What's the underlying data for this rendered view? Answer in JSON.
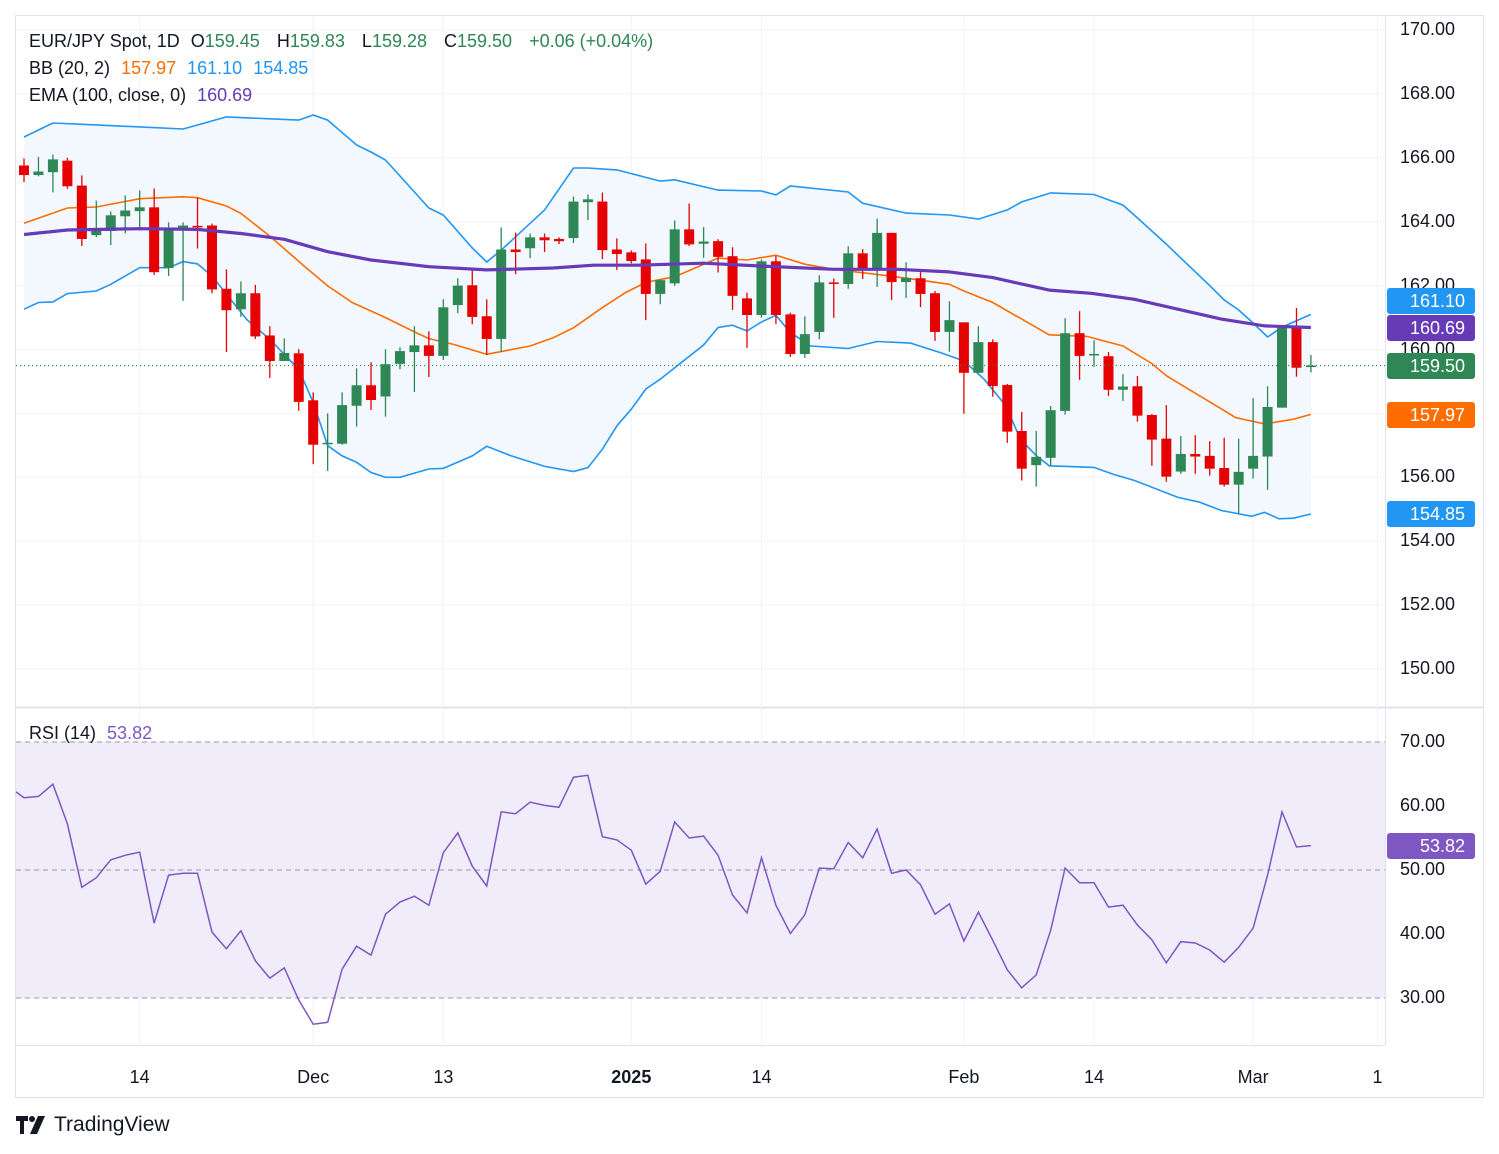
{
  "legend": {
    "symbol": "EUR/JPY Spot, 1D",
    "open_label": "O",
    "open": "159.45",
    "high_label": "H",
    "high": "159.83",
    "low_label": "L",
    "low": "159.28",
    "close_label": "C",
    "close": "159.50",
    "change": "+0.06 (+0.04%)",
    "bb_label": "BB (20, 2)",
    "bb_basis": "157.97",
    "bb_upper": "161.10",
    "bb_lower": "154.85",
    "ema_label": "EMA (100, close, 0)",
    "ema_value": "160.69",
    "rsi_label": "RSI (14)",
    "rsi_value": "53.82"
  },
  "price_axis": [
    "170.00",
    "168.00",
    "166.00",
    "164.00",
    "162.00",
    "160.00",
    "156.00",
    "154.00",
    "152.00",
    "150.00"
  ],
  "price_axis_values": [
    170,
    168,
    166,
    164,
    162,
    160,
    156,
    154,
    152,
    150
  ],
  "badges": {
    "bb_upper": "161.10",
    "ema": "160.69",
    "last": "159.50",
    "bb_basis": "157.97",
    "bb_lower": "154.85",
    "rsi": "53.82"
  },
  "rsi_axis": [
    "70.00",
    "60.00",
    "50.00",
    "40.00",
    "30.00"
  ],
  "time_axis": [
    {
      "label": "14",
      "bold": false
    },
    {
      "label": "Dec",
      "bold": false
    },
    {
      "label": "13",
      "bold": false
    },
    {
      "label": "2025",
      "bold": true
    },
    {
      "label": "14",
      "bold": false
    },
    {
      "label": "Feb",
      "bold": false
    },
    {
      "label": "14",
      "bold": false
    },
    {
      "label": "Mar",
      "bold": false
    },
    {
      "label": "1",
      "bold": false
    }
  ],
  "brand": "TradingView",
  "colors": {
    "up": "#2e8754",
    "down": "#e60000",
    "band": "#2196f3",
    "basis": "#ff6d00",
    "ema": "#673ab7",
    "rsi": "#7e57c2",
    "band_fill": "#f2f8fe",
    "rsi_fill": "#f1ecf9"
  },
  "chart_data": {
    "type": "candlestick",
    "title": "EUR/JPY Spot, 1D",
    "ylim": [
      149,
      170.5
    ],
    "candles_ohlc": [
      [
        165.76,
        165.98,
        165.24,
        165.46
      ],
      [
        165.46,
        166.03,
        165.42,
        165.57
      ],
      [
        165.55,
        166.1,
        164.92,
        165.95
      ],
      [
        165.91,
        166.0,
        165.03,
        165.11
      ],
      [
        165.13,
        165.45,
        163.24,
        163.46
      ],
      [
        163.58,
        164.66,
        163.52,
        163.74
      ],
      [
        163.71,
        164.32,
        163.27,
        164.2
      ],
      [
        164.17,
        164.82,
        163.63,
        164.35
      ],
      [
        164.33,
        164.98,
        163.81,
        164.45
      ],
      [
        164.45,
        165.04,
        162.33,
        162.42
      ],
      [
        162.55,
        163.98,
        162.3,
        163.78
      ],
      [
        163.73,
        163.98,
        161.52,
        163.88
      ],
      [
        163.87,
        164.75,
        163.16,
        163.85
      ],
      [
        163.88,
        163.94,
        161.76,
        161.88
      ],
      [
        161.9,
        162.51,
        159.92,
        161.23
      ],
      [
        161.26,
        162.13,
        161.02,
        161.76
      ],
      [
        161.76,
        162.02,
        160.33,
        160.41
      ],
      [
        160.44,
        160.73,
        159.11,
        159.64
      ],
      [
        159.64,
        160.35,
        159.64,
        159.89
      ],
      [
        159.88,
        160.01,
        158.08,
        158.36
      ],
      [
        158.41,
        158.66,
        156.41,
        157.02
      ],
      [
        157.05,
        158.0,
        156.2,
        157.08
      ],
      [
        157.05,
        158.66,
        157.02,
        158.26
      ],
      [
        158.24,
        159.41,
        157.59,
        158.88
      ],
      [
        158.88,
        159.6,
        158.11,
        158.42
      ],
      [
        158.53,
        160.01,
        157.9,
        159.54
      ],
      [
        159.55,
        160.07,
        159.38,
        159.95
      ],
      [
        159.92,
        160.73,
        158.67,
        160.13
      ],
      [
        160.13,
        160.57,
        159.14,
        159.8
      ],
      [
        159.8,
        161.57,
        159.67,
        161.32
      ],
      [
        161.39,
        162.23,
        161.14,
        162.0
      ],
      [
        162.01,
        162.48,
        160.79,
        161.02
      ],
      [
        161.04,
        161.57,
        159.83,
        160.33
      ],
      [
        160.33,
        163.82,
        159.92,
        163.13
      ],
      [
        163.13,
        163.66,
        162.36,
        163.05
      ],
      [
        163.17,
        163.63,
        162.86,
        163.51
      ],
      [
        163.51,
        163.63,
        163.05,
        163.42
      ],
      [
        163.46,
        163.51,
        163.3,
        163.39
      ],
      [
        163.49,
        164.79,
        163.33,
        164.63
      ],
      [
        164.61,
        164.85,
        164.05,
        164.7
      ],
      [
        164.63,
        164.91,
        162.83,
        163.11
      ],
      [
        163.13,
        163.48,
        162.49,
        162.99
      ],
      [
        163.04,
        163.1,
        162.7,
        162.77
      ],
      [
        162.82,
        163.32,
        160.92,
        161.74
      ],
      [
        161.74,
        162.2,
        161.42,
        162.17
      ],
      [
        162.07,
        164.04,
        161.99,
        163.76
      ],
      [
        163.76,
        164.57,
        163.24,
        163.29
      ],
      [
        163.31,
        163.83,
        162.87,
        163.38
      ],
      [
        163.39,
        163.45,
        162.41,
        162.9
      ],
      [
        162.92,
        163.2,
        161.24,
        161.68
      ],
      [
        161.6,
        161.78,
        160.05,
        161.08
      ],
      [
        161.08,
        162.82,
        161.0,
        162.76
      ],
      [
        162.76,
        162.93,
        160.8,
        161.08
      ],
      [
        161.1,
        161.15,
        159.77,
        159.86
      ],
      [
        159.86,
        161.04,
        159.74,
        160.48
      ],
      [
        160.55,
        162.32,
        160.32,
        162.1
      ],
      [
        162.1,
        162.22,
        160.99,
        162.07
      ],
      [
        162.05,
        163.23,
        161.9,
        163.01
      ],
      [
        163.01,
        163.14,
        162.21,
        162.49
      ],
      [
        162.49,
        164.1,
        161.96,
        163.65
      ],
      [
        163.65,
        163.65,
        161.55,
        162.11
      ],
      [
        162.11,
        162.73,
        161.61,
        162.24
      ],
      [
        162.23,
        162.51,
        161.33,
        161.74
      ],
      [
        161.76,
        161.83,
        160.27,
        160.55
      ],
      [
        160.55,
        161.51,
        159.93,
        160.92
      ],
      [
        160.85,
        160.85,
        157.99,
        159.27
      ],
      [
        159.27,
        160.73,
        159.27,
        160.23
      ],
      [
        160.23,
        160.32,
        158.52,
        158.86
      ],
      [
        158.89,
        158.92,
        157.08,
        157.43
      ],
      [
        157.45,
        158.05,
        155.9,
        156.27
      ],
      [
        156.38,
        157.45,
        155.71,
        156.64
      ],
      [
        156.61,
        158.23,
        156.36,
        158.1
      ],
      [
        158.08,
        160.98,
        157.96,
        160.51
      ],
      [
        160.51,
        161.2,
        159.05,
        159.8
      ],
      [
        159.82,
        160.29,
        159.46,
        159.86
      ],
      [
        159.79,
        159.92,
        158.55,
        158.74
      ],
      [
        158.74,
        159.23,
        158.39,
        158.84
      ],
      [
        158.85,
        159.17,
        157.74,
        157.93
      ],
      [
        157.95,
        157.98,
        156.36,
        157.18
      ],
      [
        157.21,
        158.26,
        155.86,
        156.02
      ],
      [
        156.18,
        157.29,
        156.11,
        156.73
      ],
      [
        156.73,
        157.32,
        156.11,
        156.65
      ],
      [
        156.67,
        157.13,
        156.05,
        156.27
      ],
      [
        156.29,
        157.24,
        155.71,
        155.77
      ],
      [
        155.77,
        157.21,
        154.86,
        156.17
      ],
      [
        156.27,
        158.48,
        155.96,
        156.67
      ],
      [
        156.65,
        158.85,
        155.61,
        158.2
      ],
      [
        158.18,
        160.74,
        158.18,
        160.71
      ],
      [
        160.71,
        161.3,
        159.15,
        159.43
      ],
      [
        159.45,
        159.83,
        159.28,
        159.5
      ]
    ],
    "bb_upper_points": [
      [
        0,
        166.65
      ],
      [
        2,
        167.09
      ],
      [
        5,
        167.03
      ],
      [
        11,
        166.9
      ],
      [
        14,
        167.28
      ],
      [
        19,
        167.18
      ],
      [
        20,
        167.34
      ],
      [
        21,
        167.18
      ],
      [
        23,
        166.4
      ],
      [
        24,
        166.18
      ],
      [
        25,
        165.93
      ],
      [
        28,
        164.43
      ],
      [
        29,
        164.21
      ],
      [
        31,
        163.18
      ],
      [
        32,
        162.74
      ],
      [
        33,
        163.11
      ],
      [
        36,
        164.37
      ],
      [
        38,
        165.68
      ],
      [
        39,
        165.68
      ],
      [
        41,
        165.62
      ],
      [
        44,
        165.27
      ],
      [
        45,
        165.31
      ],
      [
        48,
        164.99
      ],
      [
        51,
        164.96
      ],
      [
        52,
        164.84
      ],
      [
        53,
        165.12
      ],
      [
        57,
        164.93
      ],
      [
        58,
        164.58
      ],
      [
        61,
        164.27
      ],
      [
        64,
        164.21
      ],
      [
        66,
        164.08
      ],
      [
        68,
        164.37
      ],
      [
        69,
        164.62
      ],
      [
        71,
        164.9
      ],
      [
        74,
        164.85
      ],
      [
        76,
        164.52
      ],
      [
        77,
        164.12
      ],
      [
        79,
        163.3
      ],
      [
        80,
        162.86
      ],
      [
        82,
        162.0
      ],
      [
        83,
        161.55
      ],
      [
        84,
        161.24
      ],
      [
        85,
        160.83
      ],
      [
        86,
        160.39
      ],
      [
        87,
        160.7
      ],
      [
        89,
        161.1
      ]
    ],
    "bb_lower_points": [
      [
        0,
        161.26
      ],
      [
        1,
        161.47
      ],
      [
        2,
        161.49
      ],
      [
        3,
        161.75
      ],
      [
        5,
        161.83
      ],
      [
        6,
        162.04
      ],
      [
        8,
        162.56
      ],
      [
        10,
        162.56
      ],
      [
        11,
        162.75
      ],
      [
        12,
        162.68
      ],
      [
        13,
        162.3
      ],
      [
        15.4,
        160.94
      ],
      [
        17,
        160.32
      ],
      [
        19,
        159.38
      ],
      [
        20,
        158.34
      ],
      [
        21,
        156.99
      ],
      [
        22,
        156.67
      ],
      [
        23,
        156.47
      ],
      [
        24,
        156.15
      ],
      [
        25,
        156.0
      ],
      [
        26,
        156.0
      ],
      [
        28,
        156.26
      ],
      [
        29,
        156.28
      ],
      [
        31,
        156.67
      ],
      [
        32,
        156.97
      ],
      [
        33.7,
        156.67
      ],
      [
        36,
        156.34
      ],
      [
        38,
        156.18
      ],
      [
        39,
        156.3
      ],
      [
        40,
        156.88
      ],
      [
        41,
        157.61
      ],
      [
        42,
        158.13
      ],
      [
        43,
        158.76
      ],
      [
        44,
        159.07
      ],
      [
        47,
        160.14
      ],
      [
        48,
        160.69
      ],
      [
        49,
        160.76
      ],
      [
        50,
        160.58
      ],
      [
        51,
        160.86
      ],
      [
        52,
        161.07
      ],
      [
        53,
        160.53
      ],
      [
        54.4,
        160.11
      ],
      [
        57,
        160.03
      ],
      [
        59,
        160.25
      ],
      [
        61.3,
        160.2
      ],
      [
        63.4,
        159.9
      ],
      [
        65,
        159.64
      ],
      [
        66.4,
        159.07
      ],
      [
        67.9,
        158.24
      ],
      [
        68.9,
        157.2
      ],
      [
        70,
        156.68
      ],
      [
        70.9,
        156.36
      ],
      [
        74,
        156.31
      ],
      [
        75.3,
        156.1
      ],
      [
        76.8,
        155.9
      ],
      [
        79.8,
        155.37
      ],
      [
        81.3,
        155.22
      ],
      [
        82.8,
        154.96
      ],
      [
        84.9,
        154.78
      ],
      [
        85.8,
        154.9
      ],
      [
        86.8,
        154.7
      ],
      [
        87.8,
        154.72
      ],
      [
        89,
        154.85
      ]
    ],
    "bb_basis_points": [
      [
        0,
        163.95
      ],
      [
        3,
        164.43
      ],
      [
        5,
        164.46
      ],
      [
        8,
        164.72
      ],
      [
        11,
        164.78
      ],
      [
        12,
        164.75
      ],
      [
        14,
        164.49
      ],
      [
        15,
        164.26
      ],
      [
        17,
        163.55
      ],
      [
        19.4,
        162.6
      ],
      [
        21,
        161.99
      ],
      [
        22.7,
        161.47
      ],
      [
        25,
        161.0
      ],
      [
        27,
        160.55
      ],
      [
        28,
        160.34
      ],
      [
        29.7,
        160.16
      ],
      [
        32,
        159.85
      ],
      [
        35,
        160.11
      ],
      [
        36.6,
        160.37
      ],
      [
        38,
        160.68
      ],
      [
        40,
        161.31
      ],
      [
        41.6,
        161.78
      ],
      [
        43,
        162.1
      ],
      [
        45,
        162.28
      ],
      [
        48,
        162.86
      ],
      [
        50,
        162.8
      ],
      [
        52,
        162.95
      ],
      [
        54,
        162.67
      ],
      [
        56,
        162.51
      ],
      [
        59,
        162.35
      ],
      [
        61.5,
        162.2
      ],
      [
        64,
        162.04
      ],
      [
        65,
        161.83
      ],
      [
        67,
        161.47
      ],
      [
        69,
        160.95
      ],
      [
        70.9,
        160.46
      ],
      [
        73.5,
        160.41
      ],
      [
        76,
        160.11
      ],
      [
        78,
        159.56
      ],
      [
        79,
        159.18
      ],
      [
        81.3,
        158.55
      ],
      [
        83.8,
        157.87
      ],
      [
        85.8,
        157.67
      ],
      [
        87.8,
        157.82
      ],
      [
        89,
        157.97
      ]
    ],
    "ema_points": [
      [
        0,
        163.6
      ],
      [
        3,
        163.74
      ],
      [
        8,
        163.78
      ],
      [
        12,
        163.76
      ],
      [
        15,
        163.63
      ],
      [
        18,
        163.45
      ],
      [
        21,
        163.06
      ],
      [
        24,
        162.8
      ],
      [
        28,
        162.59
      ],
      [
        32,
        162.49
      ],
      [
        36.6,
        162.55
      ],
      [
        39.4,
        162.64
      ],
      [
        42.5,
        162.64
      ],
      [
        47,
        162.7
      ],
      [
        51.5,
        162.6
      ],
      [
        56,
        162.51
      ],
      [
        60.4,
        162.51
      ],
      [
        64,
        162.43
      ],
      [
        67,
        162.25
      ],
      [
        70.9,
        161.86
      ],
      [
        73.8,
        161.76
      ],
      [
        76.8,
        161.57
      ],
      [
        79.8,
        161.26
      ],
      [
        82.8,
        160.95
      ],
      [
        85.8,
        160.74
      ],
      [
        89,
        160.69
      ]
    ],
    "rsi": [
      61.3,
      61.5,
      63.4,
      57.2,
      47.3,
      48.8,
      51.6,
      52.3,
      52.8,
      41.7,
      49.2,
      49.5,
      49.5,
      40.3,
      37.7,
      40.5,
      35.8,
      33.1,
      34.7,
      29.7,
      25.9,
      26.2,
      34.5,
      38.1,
      36.7,
      43.1,
      45,
      45.9,
      44.5,
      52.7,
      55.8,
      50.6,
      47.5,
      59.1,
      58.8,
      60.6,
      60.1,
      59.8,
      64.5,
      64.8,
      55.2,
      54.7,
      53.1,
      47.8,
      49.8,
      57.5,
      55,
      55.3,
      52.3,
      46.1,
      43.3,
      51.9,
      44.5,
      40.1,
      43,
      50.3,
      50.2,
      54.3,
      51.9,
      56.4,
      49.5,
      50,
      47.7,
      43.1,
      44.7,
      38.9,
      43.4,
      39,
      34.4,
      31.6,
      33.6,
      40.6,
      50.3,
      48,
      48,
      44.2,
      44.5,
      41.4,
      39.1,
      35.5,
      38.8,
      38.6,
      37.5,
      35.6,
      37.9,
      40.9,
      49.2,
      59.1,
      53.6,
      53.82
    ],
    "rsi_levels": [
      70,
      50,
      30
    ],
    "rsi_ylim": [
      20,
      73
    ],
    "last_price": 159.5,
    "time_tick_candle_index": [
      8,
      20,
      29,
      42,
      51,
      65,
      74,
      85,
      93.6
    ]
  }
}
